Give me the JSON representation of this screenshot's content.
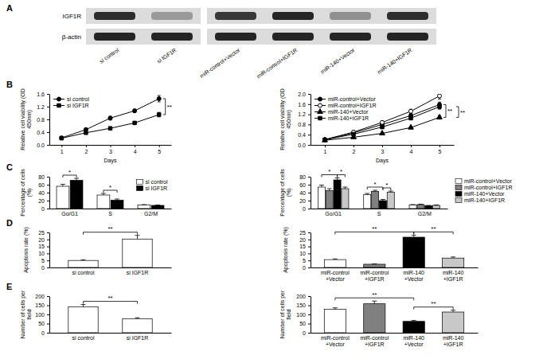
{
  "blot": {
    "label": "A",
    "rows": [
      {
        "name": "IGF1R",
        "intensity": [
          0.85,
          0.3,
          0.8,
          0.9,
          0.35,
          0.85
        ]
      },
      {
        "name": "β-actin",
        "intensity": [
          0.9,
          0.9,
          0.9,
          0.9,
          0.9,
          0.9
        ]
      }
    ],
    "lanes": [
      "si control",
      "si IGF1R",
      "miR-control+Vector",
      "miR-control+IGF1R",
      "miR-140+Vector",
      "miR-140+IGF1R"
    ]
  },
  "chart_data": [
    {
      "type": "line",
      "panel_label": "B",
      "x_label": "Days",
      "y_label": "Relative cell viability (OD 450nm)",
      "x": [
        1,
        2,
        3,
        4,
        5
      ],
      "xlim": [
        0.5,
        5.5
      ],
      "xticks": [
        1,
        2,
        3,
        4,
        5
      ],
      "ylim": [
        0,
        1.6
      ],
      "yticks": [
        {
          "value": 0,
          "label": "0.0"
        },
        0.4,
        0.8,
        1.2,
        1.6
      ],
      "legend": "upper left",
      "series": [
        {
          "name": "si control",
          "color": "#000000",
          "marker": "circle",
          "values": [
            0.22,
            0.48,
            0.84,
            1.07,
            1.45
          ],
          "errors": [
            0.02,
            0.04,
            0.06,
            0.05,
            0.1
          ]
        },
        {
          "name": "si IGF1R",
          "color": "#000000",
          "marker": "square",
          "values": [
            0.21,
            0.38,
            0.52,
            0.69,
            0.95
          ],
          "errors": [
            0.02,
            0.03,
            0.04,
            0.04,
            0.07
          ]
        }
      ],
      "annotations": [
        {
          "text": "**",
          "x": 5,
          "series": [
            "si control",
            "si IGF1R"
          ]
        }
      ]
    },
    {
      "type": "line",
      "x_label": "Days",
      "y_label": "Relative cell viability (OD 450nm)",
      "x": [
        1,
        2,
        3,
        4,
        5
      ],
      "xlim": [
        0.5,
        5.5
      ],
      "xticks": [
        1,
        2,
        3,
        4,
        5
      ],
      "ylim": [
        0,
        2
      ],
      "yticks": [
        {
          "value": 0,
          "label": "0.0"
        },
        0.4,
        0.8,
        1.2,
        1.6,
        {
          "value": 2,
          "label": "2.0"
        }
      ],
      "legend": "upper left",
      "series": [
        {
          "name": "miR-control+Vector",
          "color": "#000000",
          "marker": "circle",
          "values": [
            0.2,
            0.47,
            0.8,
            1.15,
            1.58
          ],
          "errors": [
            0.02,
            0.04,
            0.05,
            0.08,
            0.1
          ]
        },
        {
          "name": "miR-control+IGF1R",
          "color": "#000000",
          "marker": "circle-open",
          "values": [
            0.21,
            0.5,
            0.88,
            1.32,
            1.92
          ],
          "errors": [
            0.02,
            0.04,
            0.06,
            0.08,
            0.12
          ]
        },
        {
          "name": "miR-140+Vector",
          "color": "#000000",
          "marker": "triangle",
          "values": [
            0.18,
            0.3,
            0.45,
            0.68,
            1.08
          ],
          "errors": [
            0.02,
            0.03,
            0.04,
            0.05,
            0.07
          ]
        },
        {
          "name": "miR-140+IGF1R",
          "color": "#000000",
          "marker": "square",
          "values": [
            0.2,
            0.42,
            0.7,
            1.05,
            1.5
          ],
          "errors": [
            0.02,
            0.04,
            0.05,
            0.07,
            0.1
          ]
        }
      ],
      "annotations": [
        {
          "text": "**",
          "x": 5,
          "series": [
            "miR-control+Vector",
            "miR-140+Vector"
          ]
        },
        {
          "text": "**",
          "x": 5,
          "series": [
            "miR-140+Vector",
            "miR-140+IGF1R"
          ]
        }
      ]
    },
    {
      "type": "bar",
      "panel_label": "C",
      "y_label": "Percentage of cells (%)",
      "categories": [
        "Go/G1",
        "S",
        "G2/M"
      ],
      "ylim": [
        0,
        80
      ],
      "yticks": [
        0,
        20,
        40,
        60,
        80
      ],
      "legend": "upper right",
      "series": [
        {
          "name": "si control",
          "color": "#ffffff",
          "values": [
            56,
            34,
            9
          ],
          "errors": [
            5,
            4,
            1
          ]
        },
        {
          "name": "si IGF1R",
          "color": "#000000",
          "values": [
            71,
            21,
            8
          ],
          "errors": [
            5,
            3,
            1
          ]
        }
      ],
      "annotations": [
        {
          "text": "*",
          "category": "Go/G1",
          "series": [
            "si control",
            "si IGF1R"
          ]
        },
        {
          "text": "*",
          "category": "S",
          "series": [
            "si control",
            "si IGF1R"
          ]
        }
      ]
    },
    {
      "type": "bar",
      "y_label": "Percentage of cells (%)",
      "categories": [
        "Go/G1",
        "S",
        "G2/M"
      ],
      "ylim": [
        0,
        80
      ],
      "yticks": [
        0,
        20,
        40,
        60,
        80
      ],
      "legend": "right",
      "series": [
        {
          "name": "miR-control+Vector",
          "color": "#ffffff",
          "values": [
            54,
            35,
            9
          ],
          "errors": [
            5,
            3,
            1
          ]
        },
        {
          "name": "miR-control+IGF1R",
          "color": "#808080",
          "values": [
            45,
            43,
            10
          ],
          "errors": [
            5,
            3,
            1
          ]
        },
        {
          "name": "miR-140+Vector",
          "color": "#000000",
          "values": [
            72,
            20,
            7
          ],
          "errors": [
            5,
            3,
            1
          ]
        },
        {
          "name": "miR-140+IGF1R",
          "color": "#c8c8c8",
          "values": [
            50,
            41,
            8
          ],
          "errors": [
            4,
            3,
            1
          ]
        }
      ],
      "annotations": [
        {
          "text": "*",
          "category": "Go/G1",
          "series": [
            "miR-control+Vector",
            "miR-140+Vector"
          ]
        },
        {
          "text": "*",
          "category": "Go/G1",
          "series": [
            "miR-140+Vector",
            "miR-140+IGF1R"
          ]
        },
        {
          "text": "*",
          "category": "S",
          "series": [
            "miR-control+Vector",
            "miR-140+Vector"
          ]
        },
        {
          "text": "*",
          "category": "S",
          "series": [
            "miR-140+Vector",
            "miR-140+IGF1R"
          ]
        }
      ]
    },
    {
      "type": "bar",
      "panel_label": "D",
      "y_label": "Apoptosis rate (%)",
      "categories": [
        "si control",
        "si IGF1R"
      ],
      "values": [
        5,
        20.3
      ],
      "errors": [
        0.5,
        2.6
      ],
      "color": "#ffffff",
      "ylim": [
        0,
        25
      ],
      "yticks": [
        0,
        5,
        10,
        15,
        20,
        25
      ],
      "annotations": [
        {
          "text": "**",
          "categories": [
            "si control",
            "si IGF1R"
          ]
        }
      ]
    },
    {
      "type": "bar",
      "y_label": "Apoptosis rate (%)",
      "categories": [
        "miR-control+Vector",
        "miR-control+IGF1R",
        "miR-140+Vector",
        "miR-140+IGF1R"
      ],
      "values": [
        5.6,
        2.3,
        21.6,
        6.7
      ],
      "errors": [
        0.5,
        0.3,
        1.5,
        0.8
      ],
      "colors": [
        "#ffffff",
        "#808080",
        "#000000",
        "#c8c8c8"
      ],
      "ylim": [
        0,
        25
      ],
      "yticks": [
        0,
        5,
        10,
        15,
        20,
        25
      ],
      "annotations": [
        {
          "text": "**",
          "categories": [
            "miR-control+Vector",
            "miR-140+Vector"
          ]
        },
        {
          "text": "**",
          "categories": [
            "miR-140+Vector",
            "miR-140+IGF1R"
          ]
        }
      ]
    },
    {
      "type": "bar",
      "panel_label": "E",
      "y_label": "Number of cells per field",
      "categories": [
        "si control",
        "si IGF1R"
      ],
      "values": [
        142,
        76
      ],
      "errors": [
        12,
        6
      ],
      "color": "#ffffff",
      "ylim": [
        0,
        200
      ],
      "yticks": [
        0,
        50,
        100,
        150,
        200
      ],
      "annotations": [
        {
          "text": "**",
          "categories": [
            "si control",
            "si IGF1R"
          ]
        }
      ]
    },
    {
      "type": "bar",
      "y_label": "Number of cells per field",
      "categories": [
        "miR-control+Vector",
        "miR-control+IGF1R",
        "miR-140+Vector",
        "miR-140+IGF1R"
      ],
      "values": [
        128,
        158,
        62,
        113
      ],
      "errors": [
        8,
        15,
        5,
        10
      ],
      "colors": [
        "#ffffff",
        "#808080",
        "#000000",
        "#c8c8c8"
      ],
      "ylim": [
        0,
        200
      ],
      "yticks": [
        0,
        50,
        100,
        150,
        200
      ],
      "annotations": [
        {
          "text": "**",
          "categories": [
            "miR-control+Vector",
            "miR-140+Vector"
          ]
        },
        {
          "text": "**",
          "categories": [
            "miR-140+Vector",
            "miR-140+IGF1R"
          ]
        }
      ]
    }
  ]
}
